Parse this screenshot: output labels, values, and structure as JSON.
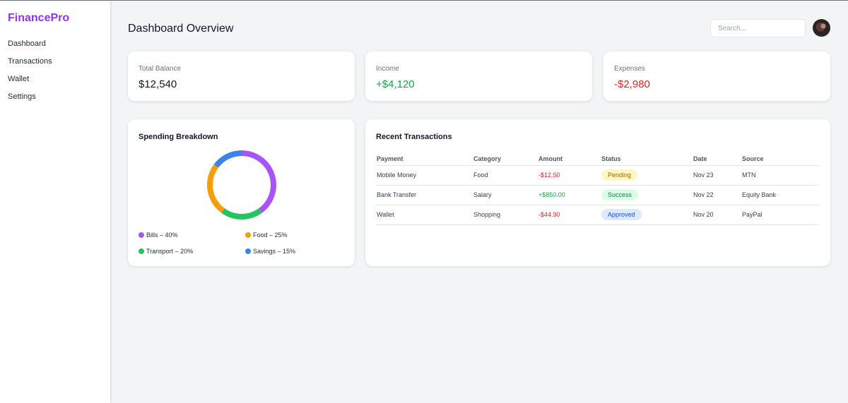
{
  "app": {
    "name": "FinancePro"
  },
  "sidebar": {
    "items": [
      {
        "label": "Dashboard"
      },
      {
        "label": "Transactions"
      },
      {
        "label": "Wallet"
      },
      {
        "label": "Settings"
      }
    ]
  },
  "header": {
    "title": "Dashboard Overview",
    "search_placeholder": "Search...",
    "avatar_icon": "user-avatar"
  },
  "stats": [
    {
      "label": "Total Balance",
      "value": "$12,540"
    },
    {
      "label": "Income",
      "value": "+$4,120",
      "color": "#16a34a"
    },
    {
      "label": "Expenses",
      "value": "-$2,980",
      "color": "#dc2626"
    }
  ],
  "spending": {
    "title": "Spending Breakdown",
    "segments": [
      {
        "label": "Bills – 40%",
        "value": 40,
        "color": "#a855f7"
      },
      {
        "label": "Food – 25%",
        "value": 25,
        "color": "#f59e0b"
      },
      {
        "label": "Transport – 20%",
        "value": 20,
        "color": "#22c55e"
      },
      {
        "label": "Savings – 15%",
        "value": 15,
        "color": "#3b82f6"
      }
    ]
  },
  "transactions": {
    "title": "Recent Transactions",
    "columns": [
      "Payment",
      "Category",
      "Amount",
      "Status",
      "Date",
      "Source"
    ],
    "rows": [
      {
        "payment": "Mobile Money",
        "category": "Food",
        "amount": "-$12.50",
        "status": "Pending",
        "date": "Nov 23",
        "source": "MTN"
      },
      {
        "payment": "Bank Transfer",
        "category": "Salary",
        "amount": "+$850.00",
        "status": "Success",
        "date": "Nov 22",
        "source": "Equity Bank"
      },
      {
        "payment": "Wallet",
        "category": "Shopping",
        "amount": "-$44.90",
        "status": "Approved",
        "date": "Nov 20",
        "source": "PayPal"
      }
    ]
  }
}
